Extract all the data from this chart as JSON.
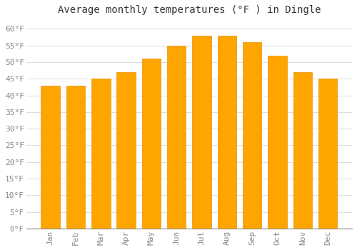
{
  "title": "Average monthly temperatures (°F ) in Dingle",
  "months": [
    "Jan",
    "Feb",
    "Mar",
    "Apr",
    "May",
    "Jun",
    "Jul",
    "Aug",
    "Sep",
    "Oct",
    "Nov",
    "Dec"
  ],
  "values": [
    43,
    43,
    45,
    47,
    51,
    55,
    58,
    58,
    56,
    52,
    47,
    45
  ],
  "bar_color": "#FFA500",
  "bar_edge_color": "#E8900A",
  "background_color": "#FFFFFF",
  "grid_color": "#DDDDDD",
  "ylim": [
    0,
    63
  ],
  "yticks": [
    0,
    5,
    10,
    15,
    20,
    25,
    30,
    35,
    40,
    45,
    50,
    55,
    60
  ],
  "title_fontsize": 10,
  "tick_fontsize": 8,
  "tick_color": "#888888",
  "text_font": "monospace"
}
